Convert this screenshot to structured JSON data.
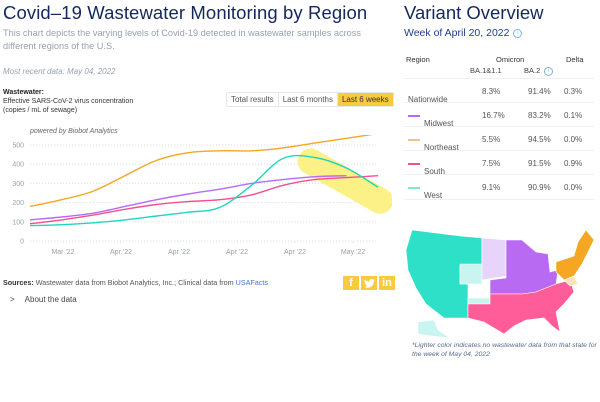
{
  "left": {
    "title": "Covid–19 Wastewater Monitoring by Region",
    "description": "This chart depicts the varying levels of Covid-19 detected in wastewater samples across different regions of the U.S.",
    "most_recent": "Most recent data: May 04, 2022",
    "wastewater_label": "Wastewater:",
    "wastewater_sub1": "Effective SARS-CoV-2 virus concentration",
    "wastewater_sub2": "(copies / mL of sewage)",
    "range_buttons": [
      {
        "label": "Total results",
        "active": false
      },
      {
        "label": "Last 6 months",
        "active": false
      },
      {
        "label": "Last 6 weeks",
        "active": true
      }
    ],
    "powered_by": "powered by Biobot Analytics",
    "sources_label": "Sources:",
    "sources_text": " Wastewater data from Biobot Analytics, Inc.; Clinical data from ",
    "sources_link": "USAFacts",
    "social": [
      {
        "icon": "facebook-icon",
        "glyph": "f"
      },
      {
        "icon": "twitter-icon",
        "glyph": "t"
      },
      {
        "icon": "linkedin-icon",
        "glyph": "in"
      }
    ],
    "about_chevron": ">",
    "about_label": "About the data"
  },
  "chart_data": {
    "type": "line",
    "title": "",
    "xlabel": "",
    "ylabel": "Effective SARS-CoV-2 virus concentration (copies / mL of sewage)",
    "ylim": [
      0,
      500
    ],
    "yticks": [
      0,
      100,
      200,
      300,
      400,
      500
    ],
    "xtick_labels": [
      "Mar '22",
      "Apr '22",
      "Apr '22",
      "Apr '22",
      "Apr '22",
      "May '22"
    ],
    "grid": true,
    "x": [
      0,
      1,
      2,
      3,
      4,
      5,
      6,
      7,
      8,
      9,
      10,
      11
    ],
    "series": [
      {
        "name": "Northeast",
        "color": "#f5a623",
        "values": [
          180,
          215,
          260,
          340,
          420,
          460,
          470,
          470,
          485,
          510,
          535,
          560
        ]
      },
      {
        "name": "Midwest",
        "color": "#b86bf2",
        "values": [
          110,
          125,
          145,
          180,
          215,
          245,
          270,
          300,
          320,
          335,
          340,
          null
        ]
      },
      {
        "name": "South",
        "color": "#f2508f",
        "values": [
          90,
          110,
          135,
          165,
          190,
          205,
          215,
          240,
          290,
          320,
          330,
          340
        ]
      },
      {
        "name": "West",
        "color": "#1fd6c0",
        "values": [
          80,
          85,
          95,
          110,
          130,
          150,
          175,
          290,
          430,
          435,
          380,
          280
        ]
      }
    ],
    "highlight": {
      "from_index": 9,
      "to_index": 11,
      "color": "#fbf07a"
    }
  },
  "right": {
    "title": "Variant Overview",
    "week": "Week of April 20, 2022",
    "headers": {
      "region": "Region",
      "omicron": "Omicron",
      "delta": "Delta",
      "ba1": "BA.1&1.1",
      "ba2": "BA.2"
    },
    "rows": [
      {
        "region": "Nationwide",
        "color": "",
        "ba1": "8.3%",
        "ba2": "91.4%",
        "delta": "0.3%"
      },
      {
        "region": "Midwest",
        "color": "#b86bf2",
        "ba1": "16.7%",
        "ba2": "83.2%",
        "delta": "0.1%"
      },
      {
        "region": "Northeast",
        "color": "#f5c08a",
        "ba1": "5.5%",
        "ba2": "94.5%",
        "delta": "0.0%"
      },
      {
        "region": "South",
        "color": "#f2508f",
        "ba1": "7.5%",
        "ba2": "91.5%",
        "delta": "0.9%"
      },
      {
        "region": "West",
        "color": "#7fe6d6",
        "ba1": "9.1%",
        "ba2": "90.9%",
        "delta": "0.0%"
      }
    ],
    "map_colors": {
      "west": "#2ee0c8",
      "west_light": "#c8f5ef",
      "midwest": "#b86bf2",
      "midwest_light": "#e8d3fb",
      "south": "#ff5c9a",
      "northeast": "#f5a623",
      "northeast_light": "#fde3b8"
    },
    "note": "*Lighter color indicates no wastewater data from that state for the week of May 04, 2022"
  }
}
